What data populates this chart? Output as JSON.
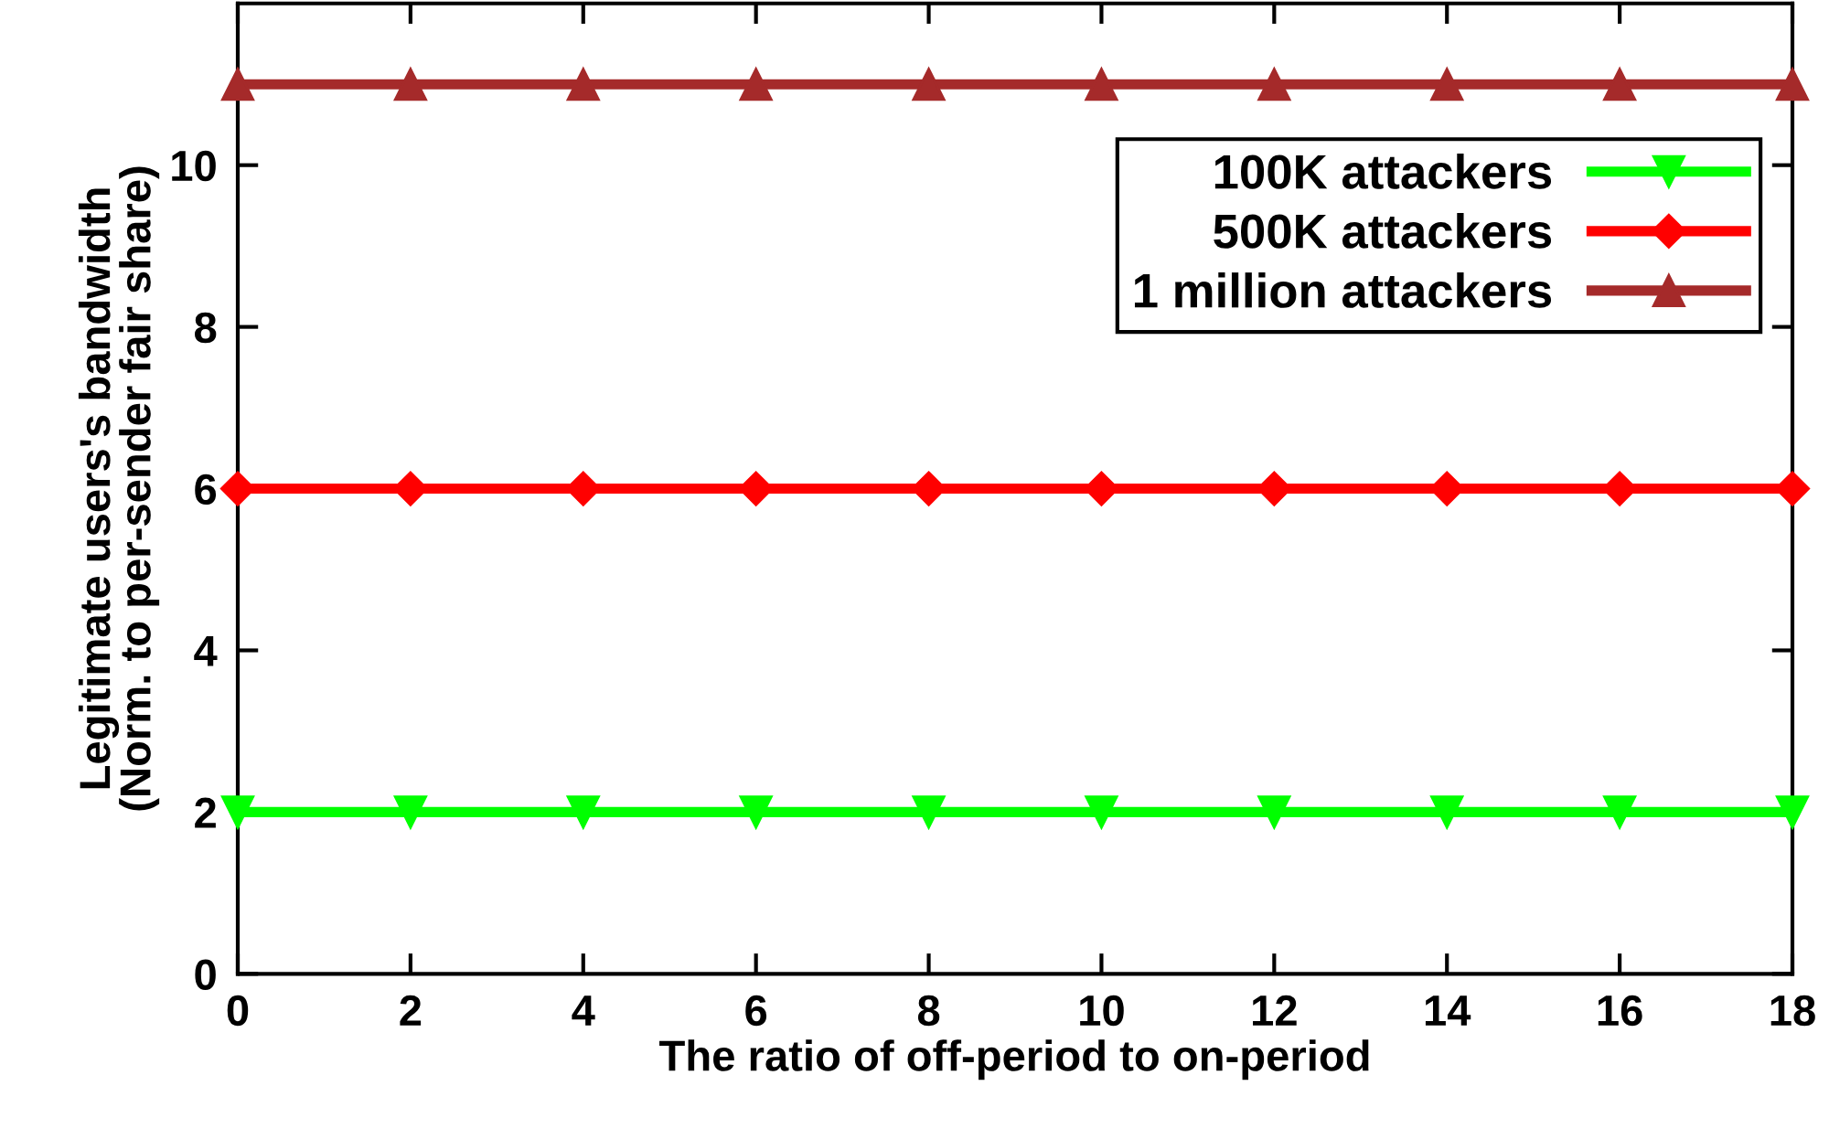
{
  "chart_data": {
    "type": "line",
    "xlabel": "The ratio of off-period to on-period",
    "ylabel": "Legitimate users's bandwidth\n(Norm. to per-sender fair share)",
    "x": [
      0,
      2,
      4,
      6,
      8,
      10,
      12,
      14,
      16,
      18
    ],
    "series": [
      {
        "name": "100K attackers",
        "color": "#00ff00",
        "marker": "triangle_down",
        "values": [
          2,
          2,
          2,
          2,
          2,
          2,
          2,
          2,
          2,
          2
        ]
      },
      {
        "name": "500K attackers",
        "color": "#ff0000",
        "marker": "diamond",
        "values": [
          6,
          6,
          6,
          6,
          6,
          6,
          6,
          6,
          6,
          6
        ]
      },
      {
        "name": "1 million attackers",
        "color": "#a52a2a",
        "marker": "triangle",
        "values": [
          11,
          11,
          11,
          11,
          11,
          11,
          11,
          11,
          11,
          11
        ]
      }
    ],
    "xlim": [
      0,
      18
    ],
    "xticks": [
      0,
      2,
      4,
      6,
      8,
      10,
      12,
      14,
      16,
      18
    ],
    "ylim": [
      0,
      12
    ],
    "yticks": [
      0,
      2,
      4,
      6,
      8,
      10
    ],
    "legend": "top right",
    "grid": false,
    "line_style": "solid"
  }
}
